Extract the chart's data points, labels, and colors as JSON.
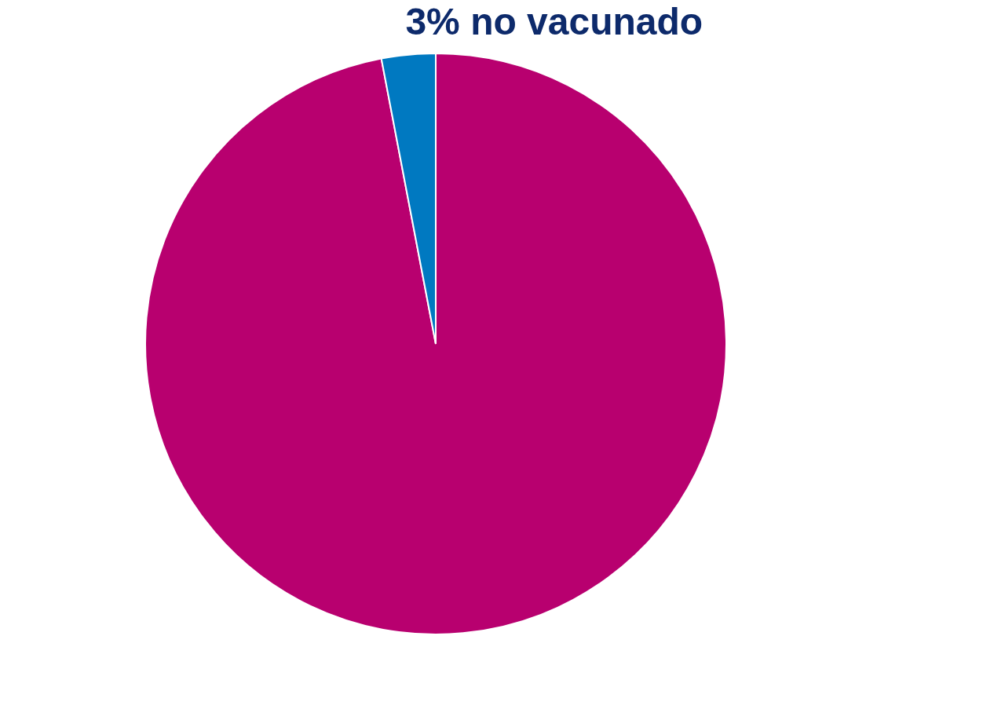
{
  "chart_data": {
    "type": "pie",
    "categories": [
      null,
      "no vacunado"
    ],
    "values": [
      97,
      3
    ],
    "value_labels": [
      null,
      "3%"
    ],
    "colors": [
      "#b8006f",
      "#0079c1"
    ],
    "legend": false
  }
}
